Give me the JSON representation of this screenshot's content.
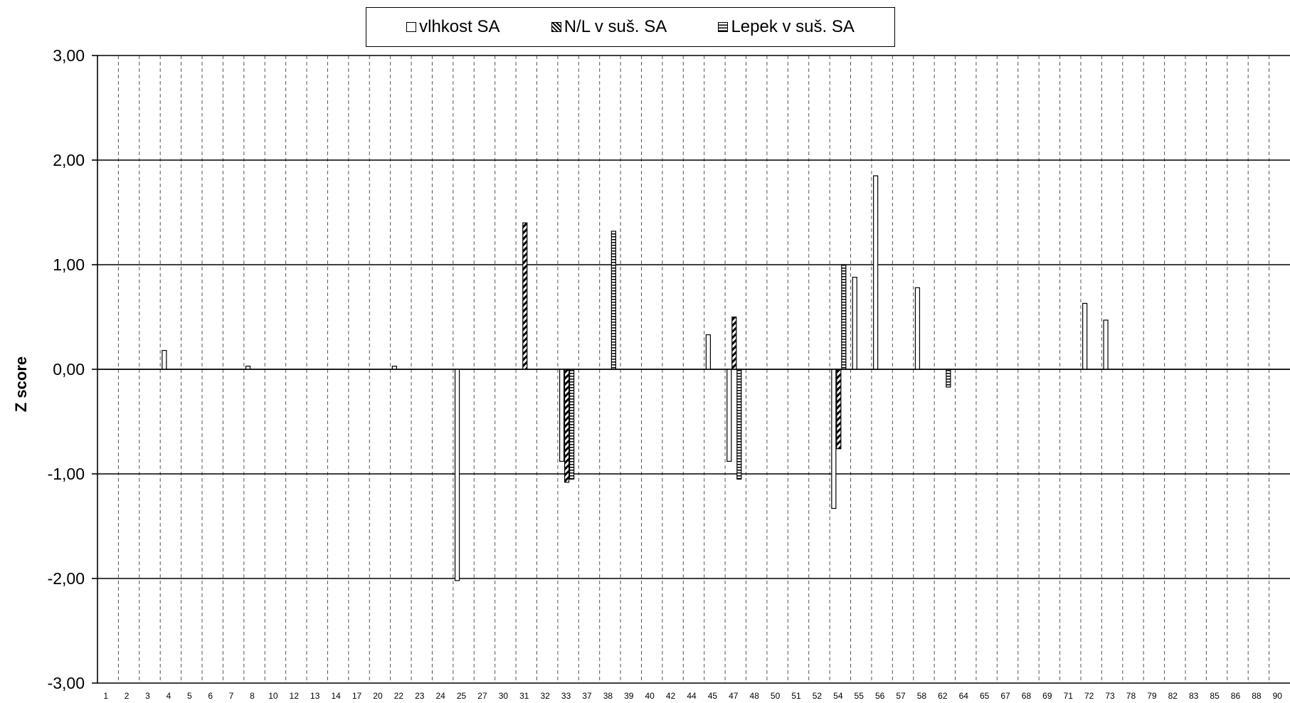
{
  "chart_data": {
    "type": "bar",
    "title": "",
    "ylabel": "Z score",
    "xlabel": "",
    "ylim": [
      -3,
      3
    ],
    "yticks": [
      "3,00",
      "2,00",
      "1,00",
      "0,00",
      "-1,00",
      "-2,00",
      "-3,00"
    ],
    "legend_position": "top-center",
    "grid": {
      "major_y": true,
      "x_dashed": true
    },
    "categories": [
      "1",
      "2",
      "3",
      "4",
      "5",
      "6",
      "7",
      "8",
      "10",
      "12",
      "13",
      "14",
      "17",
      "20",
      "22",
      "23",
      "24",
      "25",
      "27",
      "30",
      "31",
      "32",
      "33",
      "37",
      "38",
      "39",
      "40",
      "42",
      "44",
      "45",
      "47",
      "48",
      "50",
      "51",
      "52",
      "54",
      "55",
      "56",
      "57",
      "58",
      "62",
      "64",
      "65",
      "67",
      "68",
      "69",
      "71",
      "72",
      "73",
      "78",
      "79",
      "82",
      "83",
      "85",
      "86",
      "88",
      "90"
    ],
    "series": [
      {
        "name": "vlhkost SA",
        "pattern": "plain",
        "values": [
          null,
          null,
          null,
          0.18,
          null,
          null,
          null,
          0.03,
          null,
          null,
          null,
          null,
          null,
          null,
          0.03,
          null,
          null,
          -2.02,
          null,
          null,
          null,
          null,
          -0.88,
          null,
          null,
          null,
          null,
          null,
          null,
          0.33,
          -0.88,
          null,
          null,
          null,
          null,
          -1.33,
          0.88,
          1.85,
          null,
          0.78,
          null,
          null,
          null,
          null,
          null,
          null,
          null,
          0.63,
          0.47,
          null,
          null,
          null,
          null,
          null,
          null,
          null,
          null
        ]
      },
      {
        "name": "N/L v suš. SA",
        "pattern": "diagonal",
        "values": [
          null,
          null,
          null,
          null,
          null,
          null,
          null,
          null,
          null,
          null,
          null,
          null,
          null,
          null,
          null,
          null,
          null,
          null,
          null,
          null,
          1.4,
          null,
          -1.08,
          null,
          null,
          null,
          null,
          null,
          null,
          null,
          0.5,
          null,
          null,
          null,
          null,
          -0.76,
          null,
          null,
          null,
          null,
          null,
          null,
          null,
          null,
          null,
          null,
          null,
          null,
          null,
          null,
          null,
          null,
          null,
          null,
          null,
          null,
          null
        ]
      },
      {
        "name": "Lepek v suš. SA",
        "pattern": "horizontal",
        "values": [
          null,
          null,
          null,
          null,
          null,
          null,
          null,
          null,
          null,
          null,
          null,
          null,
          null,
          null,
          null,
          null,
          null,
          null,
          null,
          null,
          null,
          null,
          -1.05,
          null,
          1.32,
          null,
          null,
          null,
          null,
          null,
          -1.05,
          null,
          null,
          null,
          null,
          1.0,
          null,
          null,
          null,
          null,
          -0.17,
          null,
          null,
          null,
          null,
          null,
          null,
          null,
          null,
          null,
          null,
          null,
          null,
          null,
          null,
          null,
          null
        ]
      }
    ]
  }
}
